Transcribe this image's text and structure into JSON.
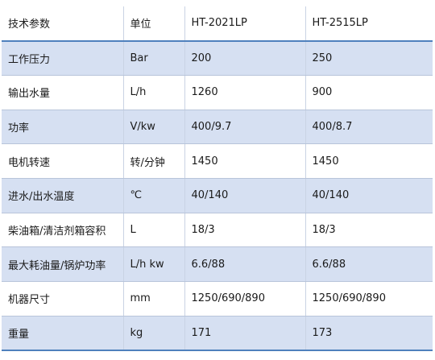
{
  "table": {
    "headers": [
      "技术参数",
      "单位",
      "HT-2021LP",
      "HT-2515LP"
    ],
    "rows": [
      [
        "工作压力",
        "Bar",
        "200",
        "250"
      ],
      [
        "输出水量",
        "L/h",
        "1260",
        "900"
      ],
      [
        "功率",
        "V/kw",
        "400/9.7",
        "400/8.7"
      ],
      [
        "电机转速",
        "转/分钟",
        "1450",
        "1450"
      ],
      [
        "进水/出水温度",
        "℃",
        "40/140",
        "40/140"
      ],
      [
        "柴油箱/清洁剂箱容积",
        "L",
        "18/3",
        "18/3"
      ],
      [
        "最大耗油量/锅炉功率",
        "L/h kw",
        "6.6/88",
        "6.6/88"
      ],
      [
        "机器尺寸",
        "mm",
        "1250/690/890",
        "1250/690/890"
      ],
      [
        "重量",
        "kg",
        "171",
        "173"
      ]
    ]
  },
  "colors": {
    "band_fill": "#d6e0f2",
    "rule_accent": "#4f81bd",
    "text": "#1a1a1a"
  }
}
